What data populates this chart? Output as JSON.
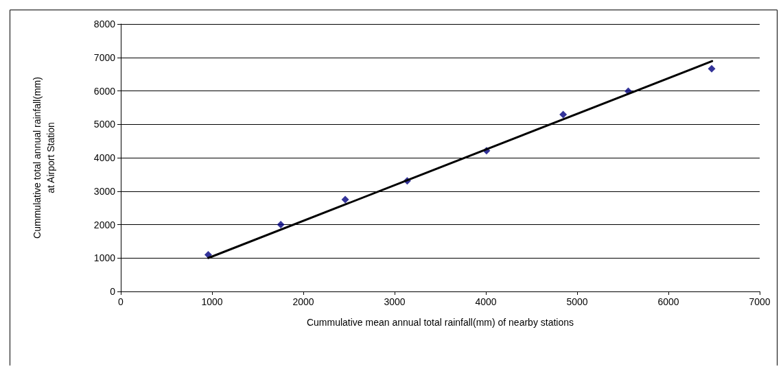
{
  "chart_data": {
    "type": "scatter",
    "xlabel": "Cummulative mean annual total rainfall(mm) of nearby stations",
    "ylabel": "Cummulative total annual rainfall(mm)\nat Airport Station",
    "marker": "diamond",
    "grid": "y",
    "xlim": [
      0,
      7000
    ],
    "xticks": [
      0,
      1000,
      2000,
      3000,
      4000,
      5000,
      6000,
      7000
    ],
    "ylim": [
      0,
      8000
    ],
    "yticks": [
      0,
      1000,
      2000,
      3000,
      4000,
      5000,
      6000,
      7000,
      8000
    ],
    "series": [
      {
        "color": "#000080",
        "x": [
          958,
          1753,
          2459,
          3138,
          4007,
          4847,
          5560,
          6474
        ],
        "values": [
          1100,
          2000,
          2750,
          3310,
          4210,
          5290,
          5990,
          6660
        ]
      },
      {
        "type": "line",
        "color": "#000000",
        "x": [
          958,
          6479
        ],
        "values": [
          1000,
          6890
        ],
        "marker": "none"
      }
    ]
  }
}
